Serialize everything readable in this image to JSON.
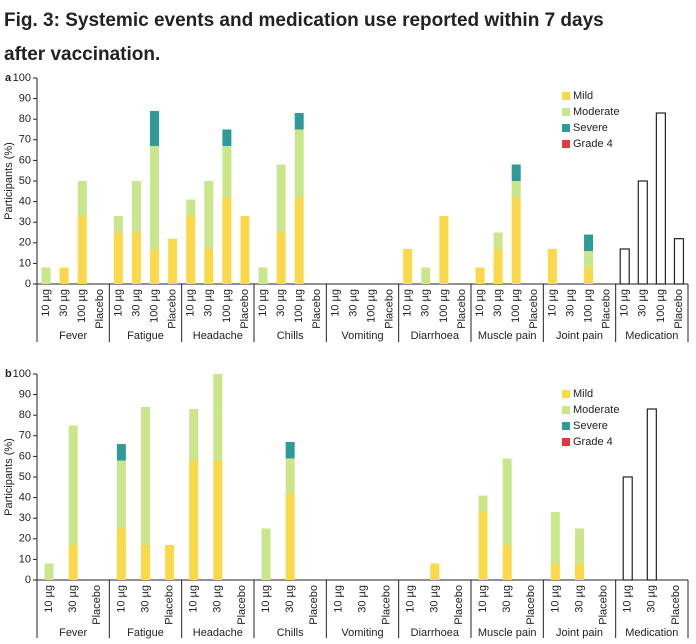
{
  "title": "Fig. 3: Systemic events and medication use reported within 7 days after vaccination.",
  "chart_data": [
    {
      "type": "bar",
      "stacked": true,
      "panel": "a",
      "ylabel": "Participants (%)",
      "ylim": [
        0,
        100
      ],
      "yticks": [
        0,
        10,
        20,
        30,
        40,
        50,
        60,
        70,
        80,
        90,
        100
      ],
      "groups": [
        {
          "name": "Fever",
          "bars": [
            "10 µg",
            "30 µg",
            "100 µg",
            "Placebo"
          ]
        },
        {
          "name": "Fatigue",
          "bars": [
            "10 µg",
            "30 µg",
            "100 µg",
            "Placebo"
          ]
        },
        {
          "name": "Headache",
          "bars": [
            "10 µg",
            "30 µg",
            "100 µg",
            "Placebo"
          ]
        },
        {
          "name": "Chills",
          "bars": [
            "10 µg",
            "30 µg",
            "100 µg",
            "Placebo"
          ]
        },
        {
          "name": "Vomiting",
          "bars": [
            "10 µg",
            "30 µg",
            "100 µg",
            "Placebo"
          ]
        },
        {
          "name": "Diarrhoea",
          "bars": [
            "10 µg",
            "30 µg",
            "100 µg",
            "Placebo"
          ]
        },
        {
          "name": "Muscle pain",
          "bars": [
            "10 µg",
            "30 µg",
            "100 µg",
            "Placebo"
          ]
        },
        {
          "name": "Joint pain",
          "bars": [
            "10 µg",
            "30 µg",
            "100 µg",
            "Placebo"
          ]
        }
      ],
      "series": [
        {
          "name": "Mild",
          "color": "#f9d84a",
          "values": [
            [
              0,
              8,
              33,
              0
            ],
            [
              25,
              25,
              17,
              22
            ],
            [
              33,
              17,
              42,
              33
            ],
            [
              0,
              25,
              42,
              0
            ],
            [
              0,
              0,
              0,
              0
            ],
            [
              17,
              0,
              33,
              0
            ],
            [
              8,
              17,
              42,
              0
            ],
            [
              17,
              0,
              8,
              0
            ]
          ]
        },
        {
          "name": "Moderate",
          "color": "#c9e68a",
          "values": [
            [
              8,
              0,
              17,
              0
            ],
            [
              8,
              25,
              50,
              0
            ],
            [
              8,
              33,
              25,
              0
            ],
            [
              8,
              33,
              33,
              0
            ],
            [
              0,
              0,
              0,
              0
            ],
            [
              0,
              8,
              0,
              0
            ],
            [
              0,
              8,
              8,
              0
            ],
            [
              0,
              0,
              8,
              0
            ]
          ]
        },
        {
          "name": "Severe",
          "color": "#2f9a9a",
          "values": [
            [
              0,
              0,
              0,
              0
            ],
            [
              0,
              0,
              17,
              0
            ],
            [
              0,
              0,
              8,
              0
            ],
            [
              0,
              0,
              8,
              0
            ],
            [
              0,
              0,
              0,
              0
            ],
            [
              0,
              0,
              0,
              0
            ],
            [
              0,
              0,
              8,
              0
            ],
            [
              0,
              0,
              8,
              0
            ]
          ]
        },
        {
          "name": "Grade 4",
          "color": "#e0393e",
          "values": [
            [
              0,
              0,
              0,
              0
            ],
            [
              0,
              0,
              0,
              0
            ],
            [
              0,
              0,
              0,
              0
            ],
            [
              0,
              0,
              0,
              0
            ],
            [
              0,
              0,
              0,
              0
            ],
            [
              0,
              0,
              0,
              0
            ],
            [
              0,
              0,
              0,
              0
            ],
            [
              0,
              0,
              0,
              0
            ]
          ]
        }
      ],
      "medication": {
        "name": "Medication",
        "bars": [
          "10 µg",
          "30 µg",
          "100 µg",
          "Placebo"
        ],
        "values": [
          17,
          50,
          83,
          22
        ]
      }
    },
    {
      "type": "bar",
      "stacked": true,
      "panel": "b",
      "ylabel": "Participants (%)",
      "ylim": [
        0,
        100
      ],
      "yticks": [
        0,
        10,
        20,
        30,
        40,
        50,
        60,
        70,
        80,
        90,
        100
      ],
      "groups": [
        {
          "name": "Fever",
          "bars": [
            "10 µg",
            "30 µg",
            "Placebo"
          ]
        },
        {
          "name": "Fatigue",
          "bars": [
            "10 µg",
            "30 µg",
            "Placebo"
          ]
        },
        {
          "name": "Headache",
          "bars": [
            "10 µg",
            "30 µg",
            "Placebo"
          ]
        },
        {
          "name": "Chills",
          "bars": [
            "10 µg",
            "30 µg",
            "Placebo"
          ]
        },
        {
          "name": "Vomiting",
          "bars": [
            "10 µg",
            "30 µg",
            "Placebo"
          ]
        },
        {
          "name": "Diarrhoea",
          "bars": [
            "10 µg",
            "30 µg",
            "Placebo"
          ]
        },
        {
          "name": "Muscle pain",
          "bars": [
            "10 µg",
            "30 µg",
            "Placebo"
          ]
        },
        {
          "name": "Joint pain",
          "bars": [
            "10 µg",
            "30 µg",
            "Placebo"
          ]
        }
      ],
      "series": [
        {
          "name": "Mild",
          "color": "#f9d84a",
          "values": [
            [
              0,
              17,
              0
            ],
            [
              25,
              17,
              17
            ],
            [
              58,
              58,
              0
            ],
            [
              0,
              42,
              0
            ],
            [
              0,
              0,
              0
            ],
            [
              0,
              8,
              0
            ],
            [
              33,
              17,
              0
            ],
            [
              8,
              8,
              0
            ]
          ]
        },
        {
          "name": "Moderate",
          "color": "#c9e68a",
          "values": [
            [
              8,
              58,
              0
            ],
            [
              33,
              67,
              0
            ],
            [
              25,
              42,
              0
            ],
            [
              25,
              17,
              0
            ],
            [
              0,
              0,
              0
            ],
            [
              0,
              0,
              0
            ],
            [
              8,
              42,
              0
            ],
            [
              25,
              17,
              0
            ]
          ]
        },
        {
          "name": "Severe",
          "color": "#2f9a9a",
          "values": [
            [
              0,
              0,
              0
            ],
            [
              8,
              0,
              0
            ],
            [
              0,
              0,
              0
            ],
            [
              0,
              8,
              0
            ],
            [
              0,
              0,
              0
            ],
            [
              0,
              0,
              0
            ],
            [
              0,
              0,
              0
            ],
            [
              0,
              0,
              0
            ]
          ]
        },
        {
          "name": "Grade 4",
          "color": "#e0393e",
          "values": [
            [
              0,
              0,
              0
            ],
            [
              0,
              0,
              0
            ],
            [
              0,
              0,
              0
            ],
            [
              0,
              0,
              0
            ],
            [
              0,
              0,
              0
            ],
            [
              0,
              0,
              0
            ],
            [
              0,
              0,
              0
            ],
            [
              0,
              0,
              0
            ]
          ]
        }
      ],
      "medication": {
        "name": "Medication",
        "bars": [
          "10 µg",
          "30 µg",
          "Placebo"
        ],
        "values": [
          50,
          83,
          0
        ]
      }
    }
  ]
}
